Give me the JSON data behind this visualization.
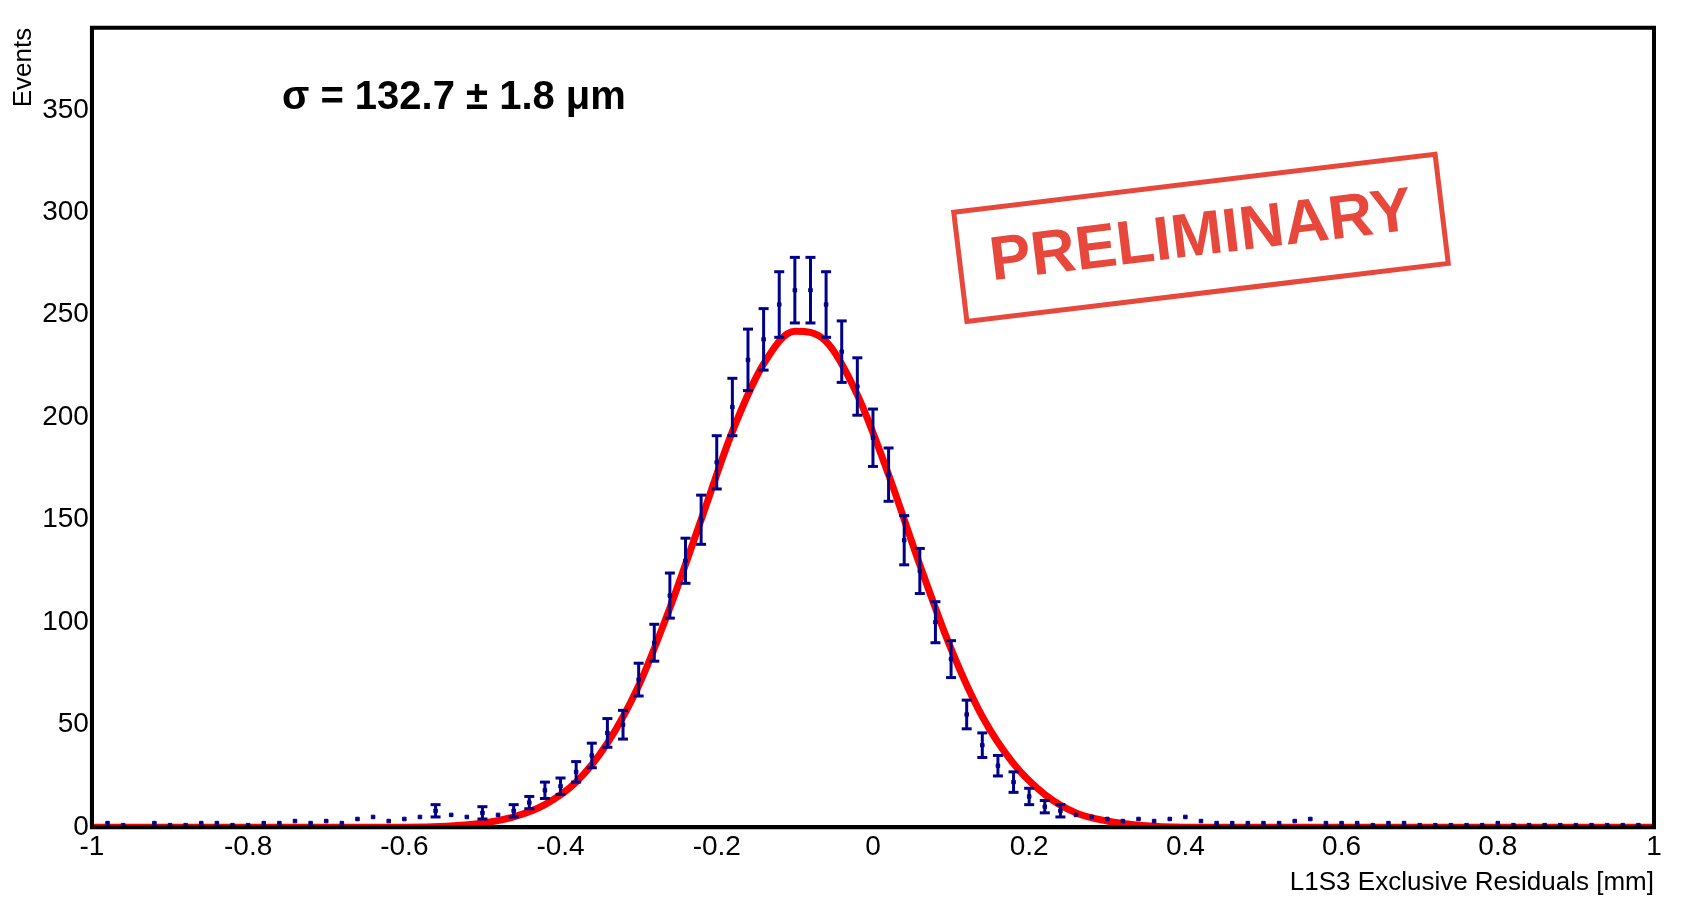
{
  "chart_data": {
    "type": "scatter",
    "xlabel": "L1S3 Exclusive Residuals [mm]",
    "ylabel": "Events",
    "xlim": [
      -1,
      1
    ],
    "xticks": [
      -1,
      -0.8,
      -0.6,
      -0.4,
      -0.2,
      0,
      0.2,
      0.4,
      0.6,
      0.8,
      1
    ],
    "ylim": [
      0,
      390
    ],
    "yticks": [
      0,
      50,
      100,
      150,
      200,
      250,
      300,
      350
    ],
    "grid": false,
    "legend": false,
    "marker": "square",
    "annotations": [
      "σ = 132.7 ± 1.8 μm",
      "PRELIMINARY"
    ],
    "series": [
      {
        "type": "scatter",
        "color": "#00008b",
        "x": [
          -0.98,
          -0.96,
          -0.92,
          -0.9,
          -0.88,
          -0.86,
          -0.84,
          -0.82,
          -0.8,
          -0.78,
          -0.76,
          -0.74,
          -0.72,
          -0.7,
          -0.68,
          -0.66,
          -0.64,
          -0.62,
          -0.6,
          -0.58,
          -0.56,
          -0.54,
          -0.52,
          -0.5,
          -0.48,
          -0.46,
          -0.44,
          -0.42,
          -0.4,
          -0.38,
          -0.36,
          -0.34,
          -0.32,
          -0.3,
          -0.28,
          -0.26,
          -0.24,
          -0.22,
          -0.2,
          -0.18,
          -0.16,
          -0.14,
          -0.12,
          -0.1,
          -0.08,
          -0.06,
          -0.04,
          -0.02,
          0,
          0.02,
          0.04,
          0.06,
          0.08,
          0.1,
          0.12,
          0.14,
          0.16,
          0.18,
          0.2,
          0.22,
          0.24,
          0.26,
          0.28,
          0.3,
          0.32,
          0.34,
          0.36,
          0.38,
          0.4,
          0.42,
          0.44,
          0.46,
          0.48,
          0.5,
          0.52,
          0.54,
          0.56,
          0.58,
          0.6,
          0.62,
          0.64,
          0.66,
          0.68,
          0.7,
          0.72,
          0.74,
          0.76,
          0.78,
          0.8,
          0.82,
          0.84,
          0.86,
          0.88,
          0.9,
          0.92,
          0.94,
          0.96,
          0.98
        ],
        "values": [
          2,
          1,
          2,
          1,
          1,
          2,
          2,
          1,
          1,
          2,
          2,
          3,
          2,
          3,
          2,
          4,
          5,
          3,
          4,
          5,
          8,
          6,
          5,
          7,
          6,
          8,
          12,
          18,
          20,
          27,
          35,
          46,
          50,
          72,
          90,
          113,
          130,
          150,
          178,
          205,
          228,
          238,
          255,
          262,
          262,
          255,
          232,
          215,
          190,
          172,
          140,
          125,
          100,
          82,
          55,
          40,
          30,
          22,
          15,
          10,
          8,
          6,
          5,
          4,
          3,
          4,
          3,
          4,
          5,
          3,
          2,
          2,
          2,
          2,
          2,
          3,
          4,
          2,
          2,
          2,
          1,
          2,
          2,
          1,
          1,
          1,
          1,
          1,
          2,
          1,
          1,
          1,
          1,
          1,
          1,
          1,
          1,
          1
        ],
        "errors": [
          null,
          null,
          null,
          null,
          null,
          null,
          null,
          null,
          null,
          null,
          null,
          null,
          null,
          null,
          null,
          null,
          null,
          null,
          null,
          null,
          3,
          null,
          null,
          3,
          null,
          3,
          3,
          4,
          4,
          5,
          6,
          7,
          7,
          8,
          9,
          11,
          11,
          12,
          13,
          14,
          15,
          15,
          16,
          16,
          16,
          16,
          15,
          14,
          14,
          13,
          12,
          11,
          10,
          9,
          7,
          6,
          5,
          5,
          4,
          3,
          3,
          null,
          null,
          null,
          null,
          null,
          null,
          null,
          null,
          null,
          null,
          null,
          null,
          null,
          null,
          null,
          null,
          null,
          null,
          null,
          null,
          null,
          null,
          null,
          null,
          null,
          null,
          null,
          null,
          null,
          null,
          null,
          null,
          null,
          null,
          null,
          null,
          null
        ]
      },
      {
        "type": "line",
        "color": "#ff0000",
        "marker": "none",
        "line_style": "solid",
        "x": [
          -1,
          -0.6,
          -0.5,
          -0.46,
          -0.42,
          -0.38,
          -0.34,
          -0.3,
          -0.26,
          -0.22,
          -0.18,
          -0.14,
          -0.1,
          -0.06,
          -0.02,
          0.02,
          0.06,
          0.1,
          0.14,
          0.18,
          0.22,
          0.26,
          0.3,
          0.34,
          0.4,
          1
        ],
        "values": [
          0,
          0,
          2,
          5,
          11,
          22,
          41,
          69,
          107,
          150,
          193,
          226,
          242,
          237,
          211,
          172,
          128,
          87,
          54,
          31,
          16,
          7,
          3,
          1,
          0,
          0
        ]
      }
    ]
  }
}
